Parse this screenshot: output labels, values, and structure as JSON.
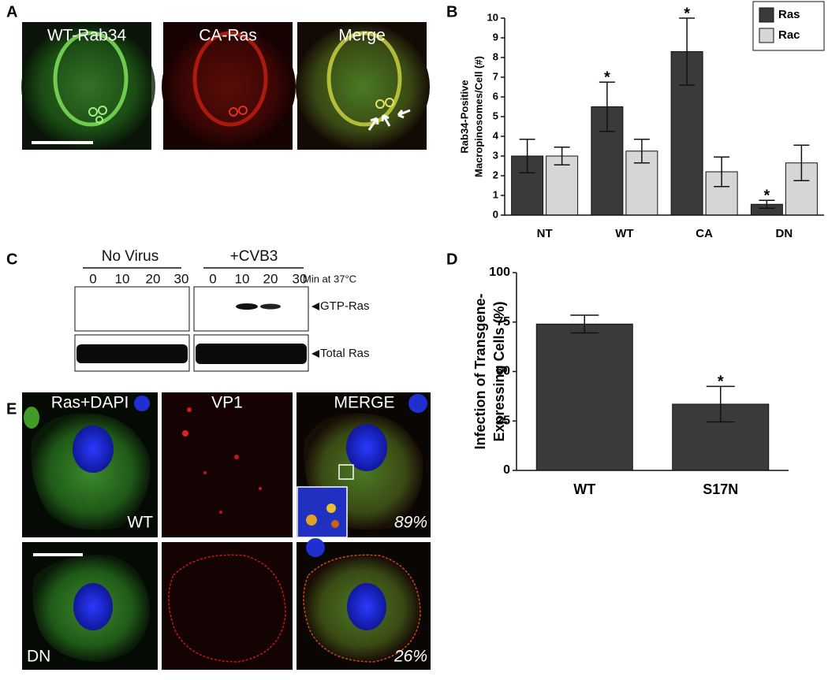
{
  "figure": {
    "panel_labels": [
      "A",
      "B",
      "C",
      "D",
      "E"
    ],
    "panel_a": {
      "titles": [
        "WT-Rab34",
        "CA-Ras",
        "Merge"
      ]
    },
    "panel_c": {
      "groups": [
        "No Virus",
        "+CVB3"
      ],
      "times": [
        0,
        10,
        20,
        30,
        0,
        10,
        20,
        30
      ],
      "time_unit": "Min at 37°C",
      "bands": [
        "GTP-Ras",
        "Total Ras"
      ]
    },
    "panel_e": {
      "titles": [
        "Ras+DAPI",
        "VP1",
        "MERGE"
      ],
      "rows": [
        "WT",
        "DN"
      ],
      "percentages": [
        "89%",
        "26%"
      ]
    }
  },
  "chart_data": [
    {
      "type": "bar",
      "ylabel": [
        "Rab34-Positive",
        "Macropinosomes/Cell (#)"
      ],
      "categories": [
        "NT",
        "WT",
        "CA",
        "DN"
      ],
      "series": [
        {
          "name": "Ras",
          "color": "#3a3a3a",
          "values": [
            3.0,
            5.5,
            8.3,
            0.55
          ],
          "errors": [
            0.85,
            1.25,
            1.7,
            0.2
          ]
        },
        {
          "name": "Rac",
          "color": "#d6d6d6",
          "values": [
            3.0,
            3.25,
            2.2,
            2.65
          ],
          "errors": [
            0.45,
            0.6,
            0.75,
            0.9
          ]
        }
      ],
      "ylim": [
        0,
        10
      ],
      "yticks": [
        0,
        1,
        2,
        3,
        4,
        5,
        6,
        7,
        8,
        9,
        10
      ],
      "legend": "upper right",
      "annotations": [
        {
          "text": "*",
          "category": "WT",
          "series": "Ras"
        },
        {
          "text": "*",
          "category": "CA",
          "series": "Ras"
        },
        {
          "text": "*",
          "category": "DN",
          "series": "Ras"
        }
      ]
    },
    {
      "type": "bar",
      "ylabel": [
        "Infection of Transgene-",
        "Expressing Cells (%)"
      ],
      "categories": [
        "WT",
        "S17N"
      ],
      "color": "#3a3a3a",
      "values": [
        74,
        33.5
      ],
      "errors": [
        4.5,
        9
      ],
      "ylim": [
        0,
        100
      ],
      "yticks": [
        0,
        25,
        50,
        75,
        100
      ],
      "annotations": [
        {
          "text": "*",
          "category": "S17N"
        }
      ]
    }
  ]
}
